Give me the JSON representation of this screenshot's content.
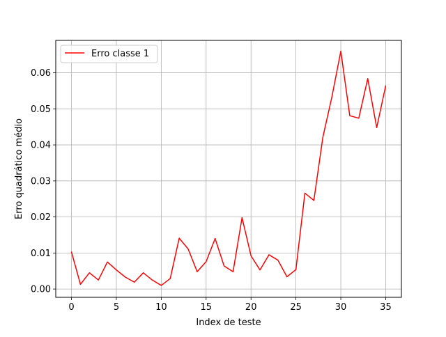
{
  "chart_data": {
    "type": "line",
    "xlabel": "Index de teste",
    "ylabel": "Erro quadrático médio",
    "xlim": [
      -1.75,
      36.75
    ],
    "ylim": [
      -0.0023,
      0.069
    ],
    "grid": true,
    "legend_position": "upper-left",
    "x_ticks": [
      0,
      5,
      10,
      15,
      20,
      25,
      30,
      35
    ],
    "x_tick_labels": [
      "0",
      "5",
      "10",
      "15",
      "20",
      "25",
      "30",
      "35"
    ],
    "y_ticks": [
      0.0,
      0.01,
      0.02,
      0.03,
      0.04,
      0.05,
      0.06
    ],
    "y_tick_labels": [
      "0.00",
      "0.01",
      "0.02",
      "0.03",
      "0.04",
      "0.05",
      "0.06"
    ],
    "series": [
      {
        "name": "Erro classe 1",
        "color": "#ff0000",
        "x": [
          0,
          1,
          2,
          3,
          4,
          5,
          6,
          7,
          8,
          9,
          10,
          11,
          12,
          13,
          14,
          15,
          16,
          17,
          18,
          19,
          20,
          21,
          22,
          23,
          24,
          25,
          26,
          27,
          28,
          29,
          30,
          31,
          32,
          33,
          34,
          35
        ],
        "values": [
          0.0103,
          0.0013,
          0.0045,
          0.0025,
          0.0075,
          0.0053,
          0.0033,
          0.0019,
          0.0045,
          0.0025,
          0.001,
          0.0029,
          0.0141,
          0.0111,
          0.0048,
          0.0076,
          0.014,
          0.0064,
          0.0048,
          0.0198,
          0.0092,
          0.0053,
          0.0095,
          0.008,
          0.0034,
          0.0054,
          0.0266,
          0.0246,
          0.0421,
          0.0532,
          0.066,
          0.0481,
          0.0474,
          0.0584,
          0.0448,
          0.0564
        ]
      }
    ]
  }
}
